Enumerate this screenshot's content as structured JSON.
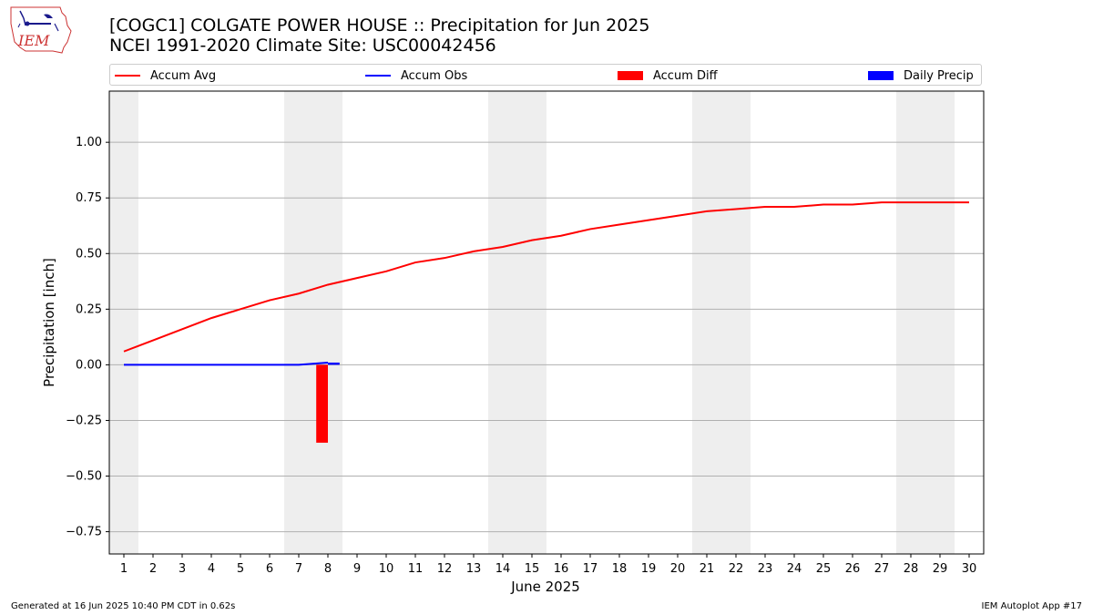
{
  "header": {
    "title_line1": "[COGC1] COLGATE POWER HOUSE :: Precipitation for Jun 2025",
    "title_line2": "NCEI 1991-2020 Climate Site: USC00042456",
    "logo_text": "IEM"
  },
  "footer": {
    "generated": "Generated at 16 Jun 2025 10:40 PM CDT in 0.62s",
    "app": "IEM Autoplot App #17"
  },
  "chart_data": {
    "type": "bar",
    "xlabel": "June 2025",
    "ylabel": "Precipitation [inch]",
    "xlim": [
      0.5,
      30.5
    ],
    "ylim": [
      -0.85,
      1.23
    ],
    "x_ticks": [
      1,
      2,
      3,
      4,
      5,
      6,
      7,
      8,
      9,
      10,
      11,
      12,
      13,
      14,
      15,
      16,
      17,
      18,
      19,
      20,
      21,
      22,
      23,
      24,
      25,
      26,
      27,
      28,
      29,
      30
    ],
    "y_ticks": [
      -0.75,
      -0.5,
      -0.25,
      0.0,
      0.25,
      0.5,
      0.75,
      1.0
    ],
    "y_tick_labels": [
      "−0.75",
      "−0.50",
      "−0.25",
      "0.00",
      "0.25",
      "0.50",
      "0.75",
      "1.00"
    ],
    "grid": "horizontal",
    "legend_position": "top",
    "weekend_shading_days": [
      1,
      7,
      8,
      14,
      15,
      21,
      22,
      28,
      29
    ],
    "series": [
      {
        "name": "Accum Avg",
        "type": "line",
        "color": "#ff0000",
        "x": [
          1,
          2,
          3,
          4,
          5,
          6,
          7,
          8,
          9,
          10,
          11,
          12,
          13,
          14,
          15,
          16,
          17,
          18,
          19,
          20,
          21,
          22,
          23,
          24,
          25,
          26,
          27,
          28,
          29,
          30
        ],
        "values": [
          0.06,
          0.11,
          0.16,
          0.21,
          0.25,
          0.29,
          0.32,
          0.36,
          0.39,
          0.42,
          0.46,
          0.48,
          0.51,
          0.53,
          0.56,
          0.58,
          0.61,
          0.63,
          0.65,
          0.67,
          0.69,
          0.7,
          0.71,
          0.71,
          0.72,
          0.72,
          0.73,
          0.73,
          0.73,
          0.73
        ]
      },
      {
        "name": "Accum Obs",
        "type": "line",
        "color": "#0000ff",
        "x": [
          1,
          2,
          3,
          4,
          5,
          6,
          7,
          8
        ],
        "values": [
          0,
          0,
          0,
          0,
          0,
          0,
          0,
          0.01
        ]
      },
      {
        "name": "Accum Diff",
        "type": "bar",
        "color": "#ff0000",
        "x": [
          8
        ],
        "values": [
          -0.35
        ]
      },
      {
        "name": "Daily Precip",
        "type": "bar",
        "color": "#0000ff",
        "x": [
          8
        ],
        "values": [
          0.01
        ]
      }
    ]
  }
}
